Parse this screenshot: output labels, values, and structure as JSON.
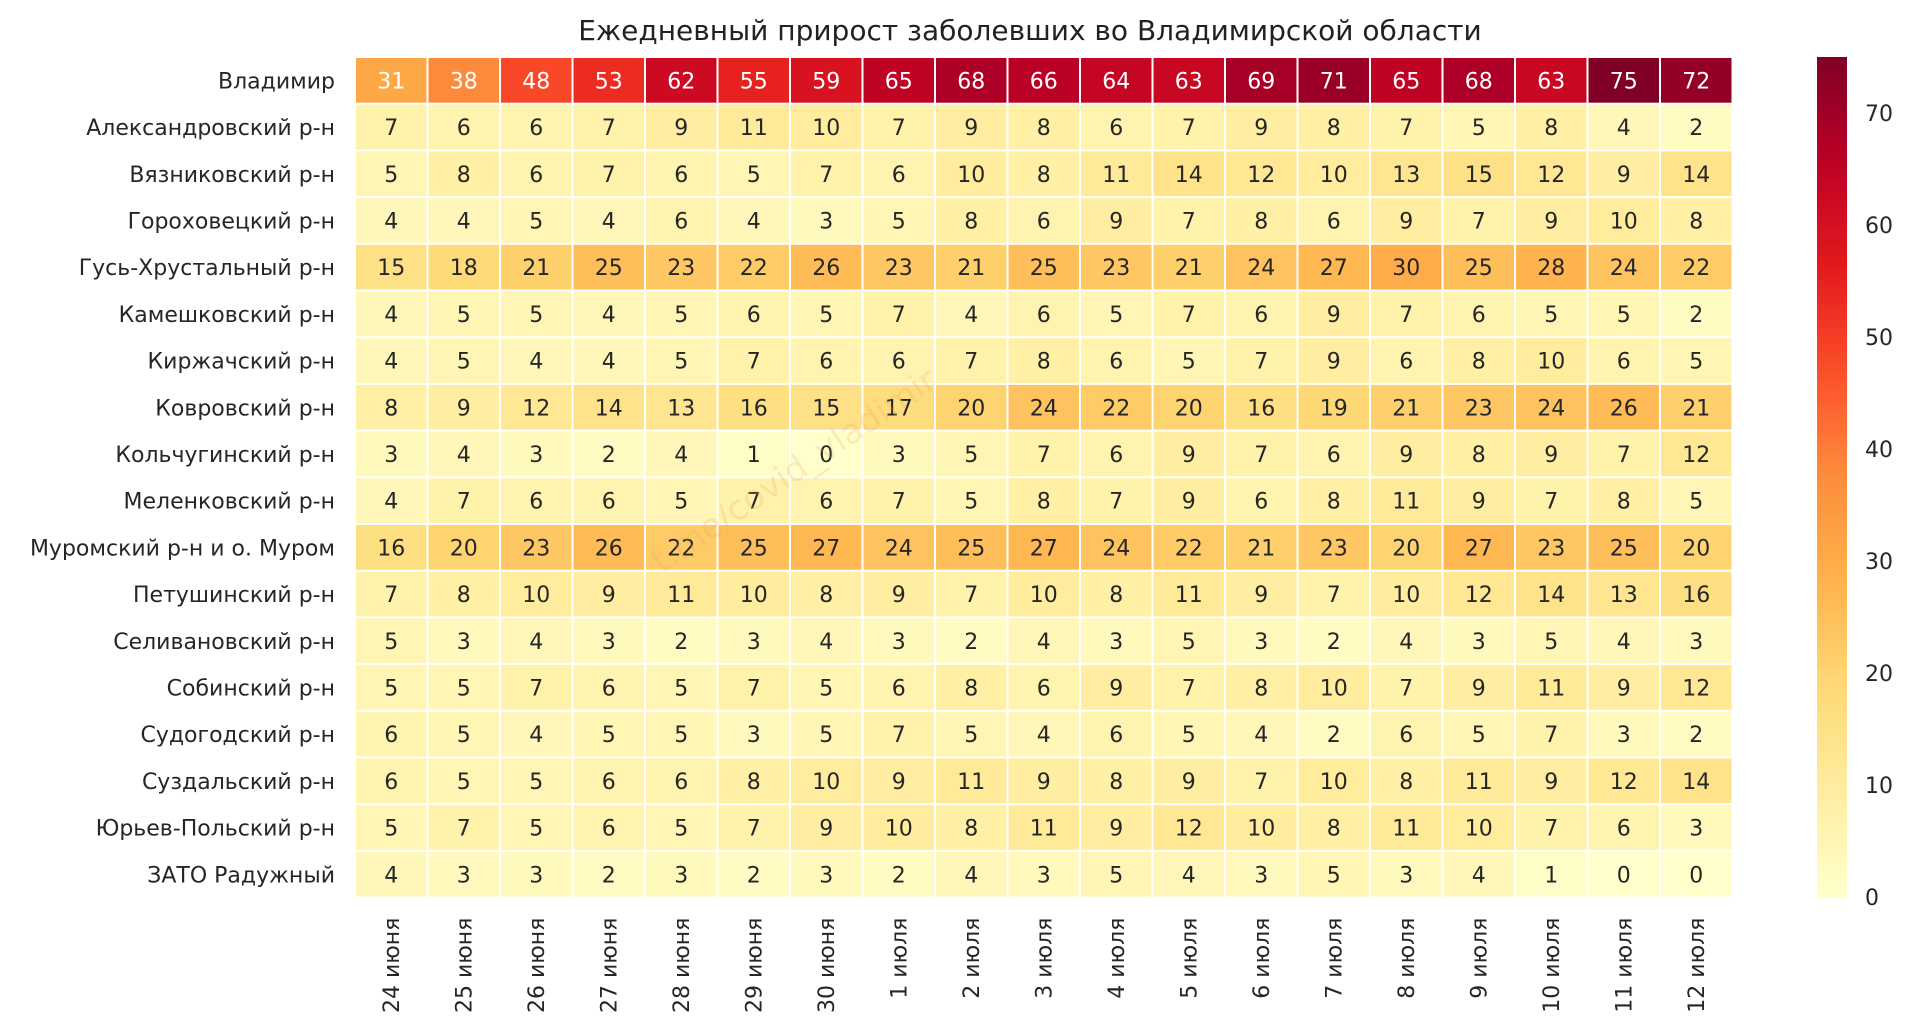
{
  "chart_data": {
    "type": "heatmap",
    "title": "Ежедневный прирост заболевших во Владимирской области",
    "watermark": "t.me/covid_vladimir",
    "colormap": "YlOrRd",
    "vmin": 0,
    "vmax": 75,
    "colorbar_ticks": [
      0,
      10,
      20,
      30,
      40,
      50,
      60,
      70
    ],
    "rows": [
      "Владимир",
      "Александровский р-н",
      "Вязниковский р-н",
      "Гороховецкий р-н",
      "Гусь-Хрустальный р-н",
      "Камешковский р-н",
      "Киржачский р-н",
      "Ковровский р-н",
      "Кольчугинский р-н",
      "Меленковский р-н",
      "Муромский р-н и о. Муром",
      "Петушинский р-н",
      "Селивановский р-н",
      "Собинский р-н",
      "Судогодский р-н",
      "Суздальский р-н",
      "Юрьев-Польский р-н",
      "ЗАТО Радужный"
    ],
    "columns": [
      "24 июня",
      "25 июня",
      "26 июня",
      "27 июня",
      "28 июня",
      "29 июня",
      "30 июня",
      "1 июля",
      "2 июля",
      "3 июля",
      "4 июля",
      "5 июля",
      "6 июля",
      "7 июля",
      "8 июля",
      "9 июля",
      "10 июля",
      "11 июля",
      "12 июля"
    ],
    "values": [
      [
        31,
        38,
        48,
        53,
        62,
        55,
        59,
        65,
        68,
        66,
        64,
        63,
        69,
        71,
        65,
        68,
        63,
        75,
        72
      ],
      [
        7,
        6,
        6,
        7,
        9,
        11,
        10,
        7,
        9,
        8,
        6,
        7,
        9,
        8,
        7,
        5,
        8,
        4,
        2
      ],
      [
        5,
        8,
        6,
        7,
        6,
        5,
        7,
        6,
        10,
        8,
        11,
        14,
        12,
        10,
        13,
        15,
        12,
        9,
        14
      ],
      [
        4,
        4,
        5,
        4,
        6,
        4,
        3,
        5,
        8,
        6,
        9,
        7,
        8,
        6,
        9,
        7,
        9,
        10,
        8
      ],
      [
        15,
        18,
        21,
        25,
        23,
        22,
        26,
        23,
        21,
        25,
        23,
        21,
        24,
        27,
        30,
        25,
        28,
        24,
        22
      ],
      [
        4,
        5,
        5,
        4,
        5,
        6,
        5,
        7,
        4,
        6,
        5,
        7,
        6,
        9,
        7,
        6,
        5,
        5,
        2
      ],
      [
        4,
        5,
        4,
        4,
        5,
        7,
        6,
        6,
        7,
        8,
        6,
        5,
        7,
        9,
        6,
        8,
        10,
        6,
        5
      ],
      [
        8,
        9,
        12,
        14,
        13,
        16,
        15,
        17,
        20,
        24,
        22,
        20,
        16,
        19,
        21,
        23,
        24,
        26,
        21
      ],
      [
        3,
        4,
        3,
        2,
        4,
        1,
        0,
        3,
        5,
        7,
        6,
        9,
        7,
        6,
        9,
        8,
        9,
        7,
        12
      ],
      [
        4,
        7,
        6,
        6,
        5,
        7,
        6,
        7,
        5,
        8,
        7,
        9,
        6,
        8,
        11,
        9,
        7,
        8,
        5
      ],
      [
        16,
        20,
        23,
        26,
        22,
        25,
        27,
        24,
        25,
        27,
        24,
        22,
        21,
        23,
        20,
        27,
        23,
        25,
        20
      ],
      [
        7,
        8,
        10,
        9,
        11,
        10,
        8,
        9,
        7,
        10,
        8,
        11,
        9,
        7,
        10,
        12,
        14,
        13,
        16
      ],
      [
        5,
        3,
        4,
        3,
        2,
        3,
        4,
        3,
        2,
        4,
        3,
        5,
        3,
        2,
        4,
        3,
        5,
        4,
        3
      ],
      [
        5,
        5,
        7,
        6,
        5,
        7,
        5,
        6,
        8,
        6,
        9,
        7,
        8,
        10,
        7,
        9,
        11,
        9,
        12
      ],
      [
        6,
        5,
        4,
        5,
        5,
        3,
        5,
        7,
        5,
        4,
        6,
        5,
        4,
        2,
        6,
        5,
        7,
        3,
        2
      ],
      [
        6,
        5,
        5,
        6,
        6,
        8,
        10,
        9,
        11,
        9,
        8,
        9,
        7,
        10,
        8,
        11,
        9,
        12,
        14
      ],
      [
        5,
        7,
        5,
        6,
        5,
        7,
        9,
        10,
        8,
        11,
        9,
        12,
        10,
        8,
        11,
        10,
        7,
        6,
        3
      ],
      [
        4,
        3,
        3,
        2,
        3,
        2,
        3,
        2,
        4,
        3,
        5,
        4,
        3,
        5,
        3,
        4,
        1,
        0,
        0
      ]
    ]
  }
}
